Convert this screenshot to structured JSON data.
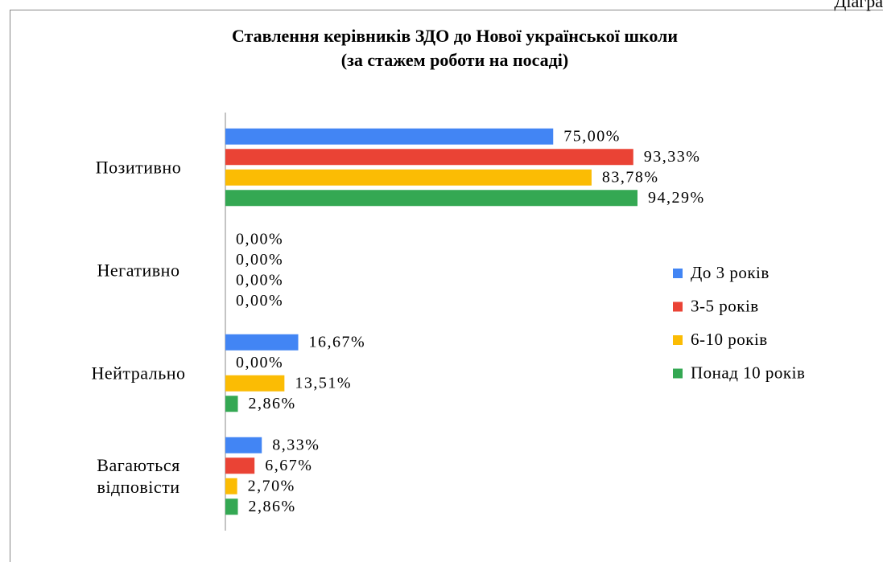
{
  "page_label": "Діагра",
  "chart_data": {
    "type": "barh",
    "title": "Ставлення керівників ЗДО до Нової української школи",
    "subtitle": "(за стажем роботи на посаді)",
    "categories": [
      "Позитивно",
      "Негативно",
      "Нейтрально",
      "Вагаються відповісти"
    ],
    "series": [
      {
        "name": "До 3 років",
        "color": "#4285f4",
        "values": [
          75.0,
          0,
          16.67,
          8.33
        ],
        "value_labels": [
          "75,00%",
          "0,00%",
          "16,67%",
          "8,33%"
        ]
      },
      {
        "name": "3-5 років",
        "color": "#ea4335",
        "values": [
          93.33,
          0,
          0,
          6.67
        ],
        "value_labels": [
          "93,33%",
          "0,00%",
          "0,00%",
          "6,67%"
        ]
      },
      {
        "name": "6-10 років",
        "color": "#fbbc04",
        "values": [
          83.78,
          0,
          13.51,
          2.7
        ],
        "value_labels": [
          "83,78%",
          "0,00%",
          "13,51%",
          "2,70%"
        ]
      },
      {
        "name": "Понад 10 років",
        "color": "#34a853",
        "values": [
          94.29,
          0,
          2.86,
          2.86
        ],
        "value_labels": [
          "94,29%",
          "0,00%",
          "2,86%",
          "2,86%"
        ]
      }
    ],
    "xlim": [
      0,
      100
    ],
    "legend": "right"
  }
}
